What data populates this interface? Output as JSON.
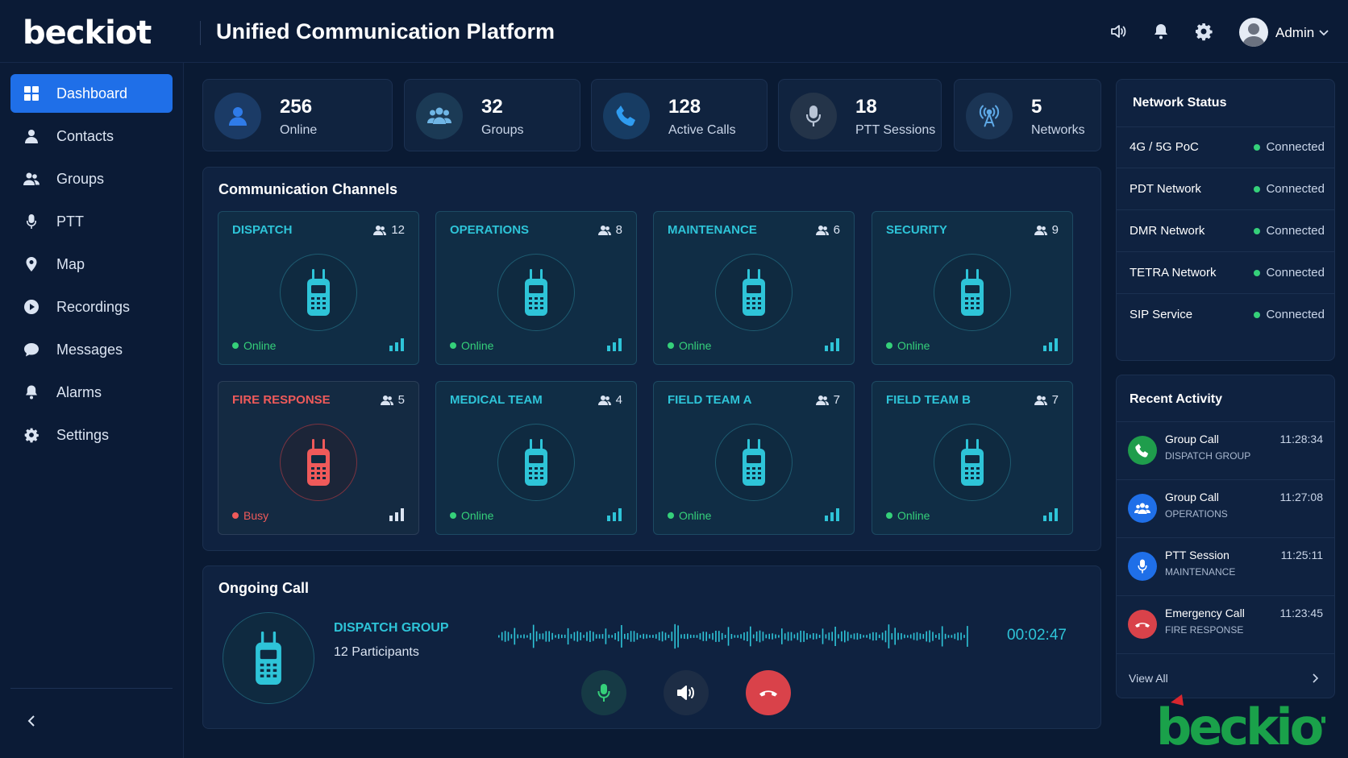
{
  "header": {
    "logo": "beckiot",
    "title": "Unified Communication Platform",
    "user": "Admin"
  },
  "sidebar": {
    "items": [
      {
        "label": "Dashboard",
        "icon": "dashboard-icon",
        "active": true
      },
      {
        "label": "Contacts",
        "icon": "contacts-icon"
      },
      {
        "label": "Groups",
        "icon": "groups-icon"
      },
      {
        "label": "PTT",
        "icon": "microphone-icon"
      },
      {
        "label": "Map",
        "icon": "map-pin-icon"
      },
      {
        "label": "Recordings",
        "icon": "recordings-icon"
      },
      {
        "label": "Messages",
        "icon": "messages-icon"
      },
      {
        "label": "Alarms",
        "icon": "bell-icon"
      },
      {
        "label": "Settings",
        "icon": "gear-icon"
      }
    ]
  },
  "stats": [
    {
      "value": "256",
      "label": "Online",
      "icon": "user-icon"
    },
    {
      "value": "32",
      "label": "Groups",
      "icon": "groups-icon"
    },
    {
      "value": "128",
      "label": "Active Calls",
      "icon": "phone-icon"
    },
    {
      "value": "18",
      "label": "PTT Sessions",
      "icon": "microphone-icon"
    },
    {
      "value": "5",
      "label": "Networks",
      "icon": "antenna-icon"
    }
  ],
  "channels": {
    "title": "Communication Channels",
    "items": [
      {
        "name": "DISPATCH",
        "count": "12",
        "status": "Online"
      },
      {
        "name": "OPERATIONS",
        "count": "8",
        "status": "Online"
      },
      {
        "name": "MAINTENANCE",
        "count": "6",
        "status": "Online"
      },
      {
        "name": "SECURITY",
        "count": "9",
        "status": "Online"
      },
      {
        "name": "FIRE RESPONSE",
        "count": "5",
        "status": "Busy"
      },
      {
        "name": "MEDICAL TEAM",
        "count": "4",
        "status": "Online"
      },
      {
        "name": "FIELD TEAM A",
        "count": "7",
        "status": "Online"
      },
      {
        "name": "FIELD TEAM B",
        "count": "7",
        "status": "Online"
      }
    ]
  },
  "network_status": {
    "title": "Network Status",
    "items": [
      {
        "name": "4G / 5G PoC",
        "status": "Connected"
      },
      {
        "name": "PDT Network",
        "status": "Connected"
      },
      {
        "name": "DMR Network",
        "status": "Connected"
      },
      {
        "name": "TETRA Network",
        "status": "Connected"
      },
      {
        "name": "SIP Service",
        "status": "Connected"
      }
    ]
  },
  "recent_activity": {
    "title": "Recent Activity",
    "items": [
      {
        "title": "Group Call",
        "sub": "DISPATCH GROUP",
        "time": "11:28:34",
        "icon": "phone-icon",
        "color": "#1f9d4c"
      },
      {
        "title": "Group Call",
        "sub": "OPERATIONS",
        "time": "11:27:08",
        "icon": "groups-icon",
        "color": "#1f6fe8"
      },
      {
        "title": "PTT Session",
        "sub": "MAINTENANCE",
        "time": "11:25:11",
        "icon": "microphone-icon",
        "color": "#1f6fe8"
      },
      {
        "title": "Emergency Call",
        "sub": "FIRE RESPONSE",
        "time": "11:23:45",
        "icon": "hangup-icon",
        "color": "#d9424a"
      }
    ],
    "view_all": "View All"
  },
  "ongoing_call": {
    "title": "Ongoing Call",
    "group": "DISPATCH GROUP",
    "participants": "12 Participants",
    "timer": "00:02:47"
  },
  "colors": {
    "accent": "#1f6fe8",
    "teal": "#2ec4d8",
    "online": "#35d07a",
    "busy": "#ef5a5a",
    "hangup": "#d9424a"
  }
}
